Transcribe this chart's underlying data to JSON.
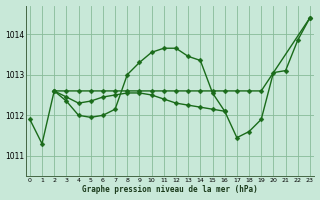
{
  "xlabel": "Graphe pression niveau de la mer (hPa)",
  "background_color": "#c8e8d8",
  "grid_color": "#88bb99",
  "line_color": "#1a6b1a",
  "marker_color": "#1a6b1a",
  "ylim": [
    1010.5,
    1014.7
  ],
  "yticks": [
    1011,
    1012,
    1013,
    1014
  ],
  "xlim": [
    -0.3,
    23.3
  ],
  "xticks": [
    0,
    1,
    2,
    3,
    4,
    5,
    6,
    7,
    8,
    9,
    10,
    11,
    12,
    13,
    14,
    15,
    16,
    17,
    18,
    19,
    20,
    21,
    22,
    23
  ],
  "series": [
    {
      "x": [
        0,
        1,
        2,
        3,
        4,
        5,
        6,
        7,
        8,
        9,
        10,
        11,
        12,
        13,
        14,
        15,
        16,
        17,
        18,
        19,
        20,
        21,
        22,
        23
      ],
      "y": [
        1011.9,
        1011.3,
        1012.6,
        1012.35,
        1012.0,
        1011.95,
        1012.0,
        1012.15,
        1013.0,
        1013.3,
        1013.55,
        1013.65,
        1013.65,
        1013.45,
        1013.35,
        1012.55,
        1012.1,
        1011.45,
        1011.6,
        1011.9,
        1013.05,
        1013.1,
        1013.85,
        1014.4
      ]
    },
    {
      "x": [
        2,
        3,
        4,
        5,
        6,
        7,
        8,
        9,
        10,
        11,
        12,
        13,
        14,
        15,
        16,
        17,
        18,
        19,
        23
      ],
      "y": [
        1012.6,
        1012.6,
        1012.6,
        1012.6,
        1012.6,
        1012.6,
        1012.6,
        1012.6,
        1012.6,
        1012.6,
        1012.6,
        1012.6,
        1012.6,
        1012.6,
        1012.6,
        1012.6,
        1012.6,
        1012.6,
        1014.4
      ]
    },
    {
      "x": [
        2,
        3,
        4,
        5,
        6,
        7,
        8,
        9,
        10,
        11,
        12,
        13,
        14,
        15,
        16
      ],
      "y": [
        1012.6,
        1012.45,
        1012.3,
        1012.35,
        1012.45,
        1012.5,
        1012.55,
        1012.55,
        1012.5,
        1012.4,
        1012.3,
        1012.25,
        1012.2,
        1012.15,
        1012.1
      ]
    }
  ]
}
